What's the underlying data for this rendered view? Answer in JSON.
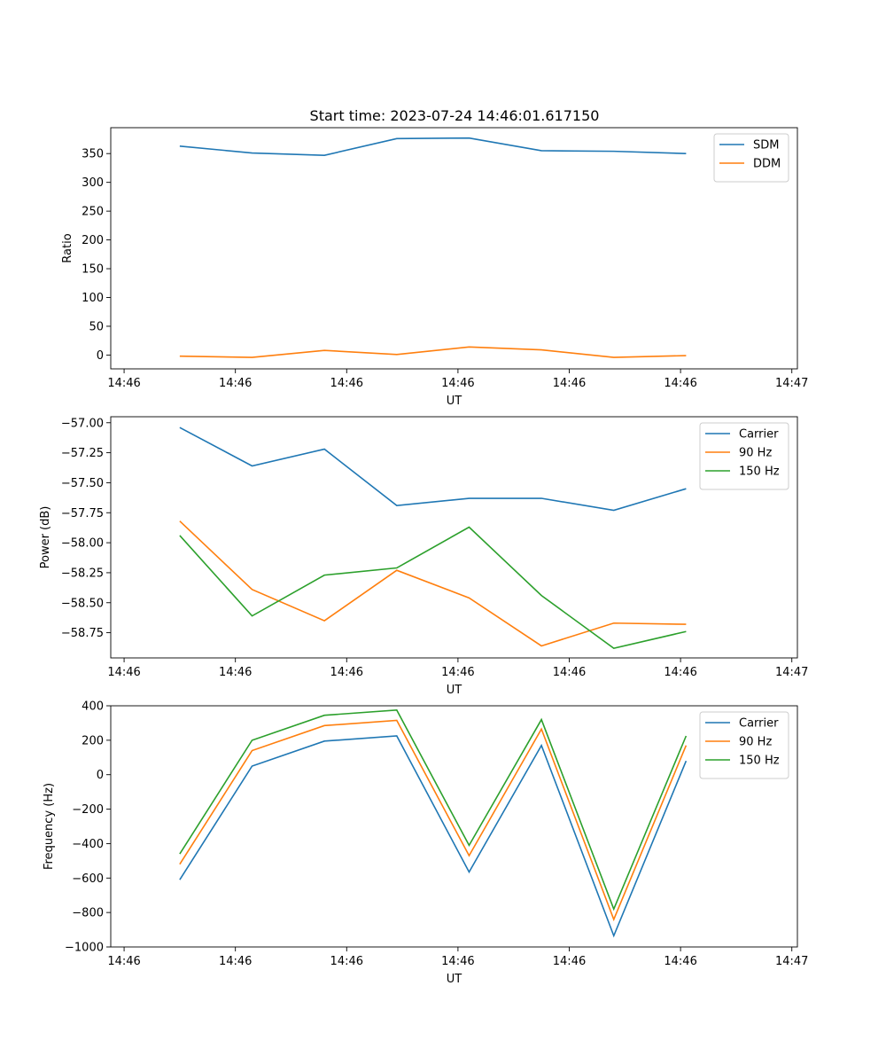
{
  "figure_title": "Start time: 2023-07-24 14:46:01.617150",
  "colors": {
    "blue": "#1f77b4",
    "orange": "#ff7f0e",
    "green": "#2ca02c"
  },
  "chart_data": [
    {
      "type": "line",
      "title": "Start time: 2023-07-24 14:46:01.617150",
      "xlabel": "UT",
      "ylabel": "Ratio",
      "x": [
        0.5,
        1.15,
        1.8,
        2.45,
        3.1,
        3.75,
        4.4,
        5.05
      ],
      "xlim": [
        -0.12,
        6.05
      ],
      "xticks": [
        0,
        1,
        2,
        3,
        4,
        5,
        6
      ],
      "xtick_labels": [
        "14:46",
        "14:46",
        "14:46",
        "14:46",
        "14:46",
        "14:46",
        "14:47"
      ],
      "ylim": [
        -24,
        395
      ],
      "yticks": [
        0,
        50,
        100,
        150,
        200,
        250,
        300,
        350
      ],
      "ytick_labels": [
        "0",
        "50",
        "100",
        "150",
        "200",
        "250",
        "300",
        "350"
      ],
      "legend": "top-right",
      "series": [
        {
          "name": "SDM",
          "color": "#1f77b4",
          "values": [
            363,
            351,
            347,
            376,
            377,
            355,
            354,
            350
          ]
        },
        {
          "name": "DDM",
          "color": "#ff7f0e",
          "values": [
            -2,
            -4,
            8,
            1,
            14,
            9,
            -4,
            -1
          ]
        }
      ]
    },
    {
      "type": "line",
      "title": "",
      "xlabel": "UT",
      "ylabel": "Power (dB)",
      "x": [
        0.5,
        1.15,
        1.8,
        2.45,
        3.1,
        3.75,
        4.4,
        5.05
      ],
      "xlim": [
        -0.12,
        6.05
      ],
      "xticks": [
        0,
        1,
        2,
        3,
        4,
        5,
        6
      ],
      "xtick_labels": [
        "14:46",
        "14:46",
        "14:46",
        "14:46",
        "14:46",
        "14:46",
        "14:47"
      ],
      "ylim": [
        -58.96,
        -56.95
      ],
      "yticks": [
        -57.0,
        -57.25,
        -57.5,
        -57.75,
        -58.0,
        -58.25,
        -58.5,
        -58.75
      ],
      "ytick_labels": [
        "−57.00",
        "−57.25",
        "−57.50",
        "−57.75",
        "−58.00",
        "−58.25",
        "−58.50",
        "−58.75"
      ],
      "legend": "top-right",
      "series": [
        {
          "name": "Carrier",
          "color": "#1f77b4",
          "values": [
            -57.04,
            -57.36,
            -57.22,
            -57.69,
            -57.63,
            -57.63,
            -57.73,
            -57.55
          ]
        },
        {
          "name": "90 Hz",
          "color": "#ff7f0e",
          "values": [
            -57.82,
            -58.39,
            -58.65,
            -58.23,
            -58.46,
            -58.86,
            -58.67,
            -58.68
          ]
        },
        {
          "name": "150 Hz",
          "color": "#2ca02c",
          "values": [
            -57.94,
            -58.61,
            -58.27,
            -58.21,
            -57.87,
            -58.44,
            -58.88,
            -58.74
          ]
        }
      ]
    },
    {
      "type": "line",
      "title": "",
      "xlabel": "UT",
      "ylabel": "Frequency (Hz)",
      "x": [
        0.5,
        1.15,
        1.8,
        2.45,
        3.1,
        3.75,
        4.4,
        5.05
      ],
      "xlim": [
        -0.12,
        6.05
      ],
      "xticks": [
        0,
        1,
        2,
        3,
        4,
        5,
        6
      ],
      "xtick_labels": [
        "14:46",
        "14:46",
        "14:46",
        "14:46",
        "14:46",
        "14:46",
        "14:47"
      ],
      "ylim": [
        -1000,
        400
      ],
      "yticks": [
        400,
        200,
        0,
        -200,
        -400,
        -600,
        -800,
        -1000
      ],
      "ytick_labels": [
        "400",
        "200",
        "0",
        "−200",
        "−400",
        "−600",
        "−800",
        "−1000"
      ],
      "legend": "top-right",
      "series": [
        {
          "name": "Carrier",
          "color": "#1f77b4",
          "values": [
            -610,
            50,
            195,
            225,
            -565,
            170,
            -935,
            80
          ]
        },
        {
          "name": "90 Hz",
          "color": "#ff7f0e",
          "values": [
            -520,
            140,
            285,
            315,
            -470,
            265,
            -840,
            170
          ]
        },
        {
          "name": "150 Hz",
          "color": "#2ca02c",
          "values": [
            -460,
            200,
            345,
            375,
            -410,
            320,
            -780,
            225
          ]
        }
      ]
    }
  ]
}
